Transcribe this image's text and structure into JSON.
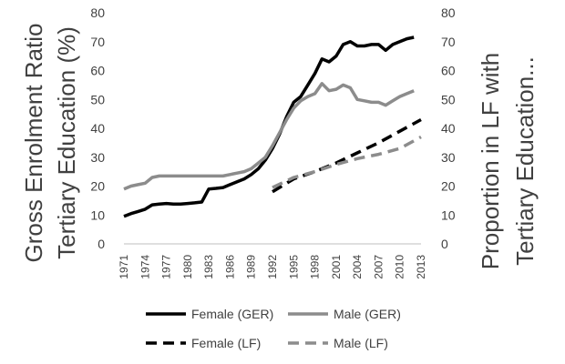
{
  "chart_data": {
    "type": "line",
    "title": "",
    "ylabel_left": [
      "Gross Enrolment Ratio",
      "Tertiary Education (%)"
    ],
    "ylabel_right": [
      "Proportion in LF with",
      "Tertiary Education..."
    ],
    "ylim": [
      0,
      80
    ],
    "yticks": [
      "0",
      "10",
      "20",
      "30",
      "40",
      "50",
      "60",
      "70",
      "80"
    ],
    "xlim": [
      1971,
      2013
    ],
    "xtick_labels": [
      "1971",
      "1974",
      "1977",
      "1980",
      "1983",
      "1986",
      "1989",
      "1992",
      "1995",
      "1998",
      "2001",
      "2004",
      "2007",
      "2010",
      "2013"
    ],
    "legend_position": "bottom",
    "grid": false,
    "series": [
      {
        "name": "Female (GER)",
        "color": "#000000",
        "dash": "solid",
        "x": [
          1971,
          1972,
          1973,
          1974,
          1975,
          1976,
          1977,
          1978,
          1979,
          1980,
          1981,
          1982,
          1983,
          1984,
          1985,
          1986,
          1987,
          1988,
          1989,
          1990,
          1991,
          1992,
          1993,
          1994,
          1995,
          1996,
          1997,
          1998,
          1999,
          2000,
          2001,
          2002,
          2003,
          2004,
          2005,
          2006,
          2007,
          2008,
          2009,
          2010,
          2011,
          2012
        ],
        "values": [
          9.5,
          10.5,
          11.2,
          12,
          13.5,
          13.8,
          14,
          13.8,
          13.8,
          14,
          14.2,
          14.5,
          19,
          19.2,
          19.5,
          20.5,
          21.5,
          22.5,
          24,
          26,
          29,
          33,
          38,
          44,
          49,
          51,
          55,
          59,
          64,
          63,
          65,
          69,
          70,
          68.5,
          68.5,
          69,
          69,
          67,
          69,
          70,
          71,
          71.5
        ]
      },
      {
        "name": "Male (GER)",
        "color": "#8c8c8c",
        "dash": "solid",
        "x": [
          1971,
          1972,
          1973,
          1974,
          1975,
          1976,
          1977,
          1978,
          1979,
          1980,
          1981,
          1982,
          1983,
          1984,
          1985,
          1986,
          1987,
          1988,
          1989,
          1990,
          1991,
          1992,
          1993,
          1994,
          1995,
          1996,
          1997,
          1998,
          1999,
          2000,
          2001,
          2002,
          2003,
          2004,
          2005,
          2006,
          2007,
          2008,
          2009,
          2010,
          2011,
          2012
        ],
        "values": [
          19,
          20,
          20.5,
          21,
          23,
          23.5,
          23.5,
          23.5,
          23.5,
          23.5,
          23.5,
          23.5,
          23.5,
          23.5,
          23.5,
          24,
          24.5,
          25,
          26,
          28,
          30,
          34,
          38.5,
          43,
          47,
          49.5,
          51,
          52,
          55.5,
          53,
          53.5,
          55,
          54,
          50,
          49.5,
          49,
          49,
          48,
          49.5,
          51,
          52,
          53
        ]
      },
      {
        "name": "Female (LF)",
        "color": "#000000",
        "dash": "dashed",
        "x": [
          1992,
          1995,
          1998,
          2001,
          2004,
          2007,
          2010,
          2013
        ],
        "values": [
          18,
          22.5,
          25,
          28,
          31.5,
          35,
          39,
          43
        ]
      },
      {
        "name": "Male (LF)",
        "color": "#8c8c8c",
        "dash": "dashed",
        "x": [
          1992,
          1995,
          1998,
          2001,
          2004,
          2007,
          2010,
          2013
        ],
        "values": [
          19.5,
          23,
          25,
          27.5,
          29.5,
          31,
          33,
          37
        ]
      }
    ]
  }
}
